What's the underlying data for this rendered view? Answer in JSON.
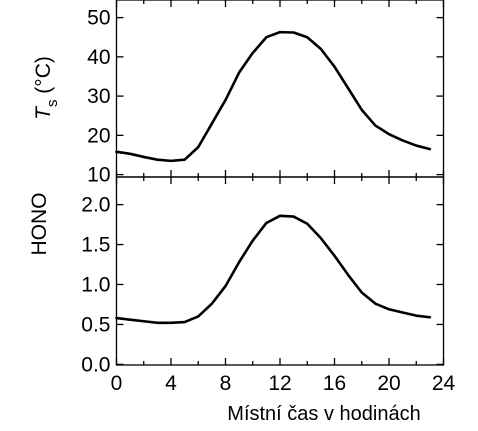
{
  "chart_data": [
    {
      "type": "line",
      "panel": "top",
      "ylabel_main": "T",
      "ylabel_sub": "s",
      "ylabel_unit": " (°C)",
      "ylim": [
        10,
        55
      ],
      "yticks": [
        10,
        20,
        30,
        40,
        50
      ],
      "xlim": [
        0,
        24
      ],
      "grid": false,
      "x": [
        0,
        1,
        2,
        3,
        4,
        5,
        6,
        7,
        8,
        9,
        10,
        11,
        12,
        13,
        14,
        15,
        16,
        17,
        18,
        19,
        20,
        21,
        22,
        23
      ],
      "series": [
        {
          "values": [
            15.8,
            15.3,
            14.5,
            13.8,
            13.5,
            13.8,
            17.0,
            23.0,
            29.0,
            36.0,
            41.0,
            45.0,
            46.3,
            46.2,
            45.0,
            42.0,
            37.5,
            32.0,
            26.5,
            22.5,
            20.3,
            18.7,
            17.4,
            16.5
          ]
        }
      ]
    },
    {
      "type": "line",
      "panel": "bottom",
      "ylabel": "HONO",
      "ylim": [
        0.0,
        2.3
      ],
      "yticks": [
        0.0,
        0.5,
        1.0,
        1.5,
        2.0
      ],
      "ytick_labels": [
        "0.0",
        "0.5",
        "1.0",
        "1.5",
        "2.0"
      ],
      "xlim": [
        0,
        24
      ],
      "xticks": [
        0,
        4,
        8,
        12,
        16,
        20,
        24
      ],
      "xtick_labels": [
        "0",
        "4",
        "8",
        "12",
        "16",
        "20",
        "24"
      ],
      "xlabel": "Místní čas v hodinách",
      "grid": false,
      "x": [
        0,
        1,
        2,
        3,
        4,
        5,
        6,
        7,
        8,
        9,
        10,
        11,
        12,
        13,
        14,
        15,
        16,
        17,
        18,
        19,
        20,
        21,
        22,
        23
      ],
      "series": [
        {
          "values": [
            0.58,
            0.56,
            0.54,
            0.52,
            0.52,
            0.53,
            0.6,
            0.76,
            0.98,
            1.28,
            1.55,
            1.77,
            1.86,
            1.85,
            1.76,
            1.58,
            1.36,
            1.12,
            0.9,
            0.76,
            0.69,
            0.65,
            0.61,
            0.59
          ]
        }
      ]
    }
  ]
}
